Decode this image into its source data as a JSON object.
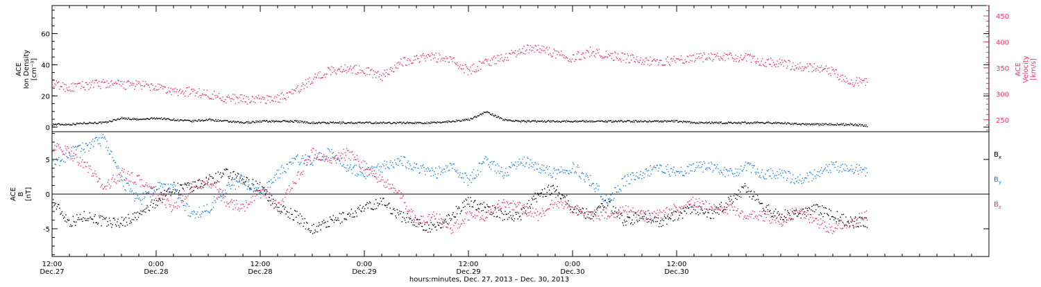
{
  "chart_data": [
    {
      "type": "scatter",
      "panel": "top",
      "left_axis": {
        "label_lines": [
          "ACE",
          "Ion Density",
          "[cm⁻³]"
        ],
        "ylim": [
          -3,
          78
        ],
        "ticks": [
          0,
          20,
          40,
          60
        ],
        "tick_labels": [
          "0",
          "20",
          "40",
          "60"
        ]
      },
      "right_axis": {
        "label_lines": [
          "ACE",
          "Velocity",
          "[km/s]"
        ],
        "ylim": [
          227,
          470
        ],
        "ticks": [
          250,
          300,
          350,
          400,
          450
        ],
        "tick_labels": [
          "250",
          "300",
          "350",
          "400",
          "450"
        ],
        "color": "#e8336a"
      },
      "series": [
        {
          "key": "density",
          "color": "#000000",
          "axis": "left",
          "x_hours": [
            0,
            2,
            4,
            6,
            8,
            10,
            12,
            14,
            16,
            18,
            20,
            22,
            24,
            26,
            28,
            30,
            32,
            34,
            36,
            38,
            40,
            42,
            44,
            46,
            48,
            50,
            52,
            54,
            56,
            58,
            60,
            62,
            64,
            66,
            68,
            70,
            72,
            74,
            76,
            78,
            80,
            82,
            84,
            86,
            88,
            90,
            92,
            94
          ],
          "values": [
            2,
            2,
            3,
            3,
            6,
            5,
            6,
            5,
            4,
            5,
            4,
            3,
            4,
            4,
            4,
            3,
            3,
            3,
            3,
            3,
            3,
            3,
            3,
            4,
            5,
            10,
            5,
            4,
            4,
            4,
            4,
            4,
            4,
            4,
            4,
            4,
            4,
            3,
            3,
            3,
            3,
            3,
            3,
            2,
            2,
            2,
            2,
            1
          ]
        },
        {
          "key": "velocity",
          "color": "#e8336a",
          "axis": "right",
          "x_hours": [
            0,
            2,
            4,
            6,
            8,
            10,
            12,
            14,
            16,
            18,
            20,
            22,
            24,
            26,
            28,
            30,
            32,
            34,
            36,
            38,
            40,
            42,
            44,
            46,
            48,
            50,
            52,
            54,
            56,
            58,
            60,
            62,
            64,
            66,
            68,
            70,
            72,
            74,
            76,
            78,
            80,
            82,
            84,
            86,
            88,
            90,
            92,
            94
          ],
          "values": [
            320,
            312,
            318,
            320,
            318,
            318,
            312,
            305,
            305,
            300,
            292,
            290,
            290,
            292,
            305,
            330,
            345,
            350,
            345,
            335,
            360,
            370,
            372,
            365,
            345,
            362,
            370,
            385,
            390,
            378,
            370,
            382,
            375,
            370,
            365,
            362,
            365,
            370,
            372,
            372,
            370,
            362,
            360,
            352,
            352,
            342,
            325,
            322
          ]
        }
      ]
    },
    {
      "type": "scatter",
      "panel": "bottom",
      "left_axis": {
        "label_lines": [
          "ACE",
          "B",
          "[nT]"
        ],
        "ylim": [
          -9,
          9
        ],
        "ticks": [
          -5,
          0,
          5
        ],
        "tick_labels": [
          "-5",
          "0",
          "5"
        ]
      },
      "legend": [
        {
          "label": "B",
          "sub": "x",
          "color": "#000000"
        },
        {
          "label": "B",
          "sub": "y",
          "color": "#1a80e0"
        },
        {
          "label": "B",
          "sub": "z",
          "color": "#e8336a"
        }
      ],
      "series": [
        {
          "key": "bx",
          "color": "#000000",
          "x_hours": [
            0,
            2,
            4,
            6,
            8,
            10,
            12,
            14,
            16,
            18,
            20,
            22,
            24,
            26,
            28,
            30,
            32,
            34,
            36,
            38,
            40,
            42,
            44,
            46,
            48,
            50,
            52,
            54,
            56,
            58,
            60,
            62,
            64,
            66,
            68,
            70,
            72,
            74,
            76,
            78,
            80,
            82,
            84,
            86,
            88,
            90,
            92,
            94
          ],
          "values": [
            -1,
            -4,
            -3,
            -4,
            -4,
            -3,
            -1,
            1,
            1,
            2,
            3,
            2,
            1,
            -2,
            -3,
            -5,
            -4,
            -3,
            -2,
            -1,
            -3,
            -4,
            -5,
            -3,
            -1,
            -2,
            -3,
            -3,
            0,
            1,
            -2,
            -3,
            -1,
            -4,
            -3,
            -4,
            -3,
            -2,
            -3,
            -1,
            1,
            -2,
            -3,
            -3,
            -2,
            -3,
            -4,
            -4
          ]
        },
        {
          "key": "by",
          "color": "#1a80e0",
          "x_hours": [
            0,
            2,
            4,
            6,
            8,
            10,
            12,
            14,
            16,
            18,
            20,
            22,
            24,
            26,
            28,
            30,
            32,
            34,
            36,
            38,
            40,
            42,
            44,
            46,
            48,
            50,
            52,
            54,
            56,
            58,
            60,
            62,
            64,
            66,
            68,
            70,
            72,
            74,
            76,
            78,
            80,
            82,
            84,
            86,
            88,
            90,
            92,
            94
          ],
          "values": [
            4,
            6,
            7,
            8,
            2,
            -1,
            1,
            1,
            -3,
            -2,
            1,
            2,
            0,
            3,
            5,
            5,
            6,
            4,
            3,
            4,
            5,
            4,
            3,
            4,
            2,
            5,
            3,
            5,
            4,
            3,
            4,
            2,
            -1,
            2,
            3,
            4,
            3,
            4,
            4,
            3,
            4,
            3,
            3,
            2,
            3,
            4,
            4,
            3
          ]
        },
        {
          "key": "bz",
          "color": "#e8336a",
          "x_hours": [
            0,
            2,
            4,
            6,
            8,
            10,
            12,
            14,
            16,
            18,
            20,
            22,
            24,
            26,
            28,
            30,
            32,
            34,
            36,
            38,
            40,
            42,
            44,
            46,
            48,
            50,
            52,
            54,
            56,
            58,
            60,
            62,
            64,
            66,
            68,
            70,
            72,
            74,
            76,
            78,
            80,
            82,
            84,
            86,
            88,
            90,
            92,
            94
          ],
          "values": [
            7,
            6,
            4,
            1,
            3,
            2,
            0,
            -2,
            1,
            2,
            -1,
            -2,
            1,
            -2,
            2,
            6,
            5,
            6,
            4,
            2,
            0,
            -4,
            -3,
            -5,
            -3,
            -3,
            -1,
            -2,
            -3,
            -1,
            -2,
            -3,
            -3,
            -2,
            -3,
            -3,
            -2,
            -1,
            -2,
            -2,
            -3,
            -3,
            -4,
            -2,
            -4,
            -5,
            -4,
            -3
          ]
        }
      ]
    }
  ],
  "x_axis": {
    "range_hours": [
      0,
      108
    ],
    "major_ticks": [
      {
        "hour": 0,
        "time": "12:00",
        "date": "Dec.27"
      },
      {
        "hour": 12,
        "time": "0:00",
        "date": "Dec.28"
      },
      {
        "hour": 24,
        "time": "12:00",
        "date": "Dec.28"
      },
      {
        "hour": 36,
        "time": "0:00",
        "date": "Dec.29"
      },
      {
        "hour": 48,
        "time": "12:00",
        "date": "Dec.29"
      },
      {
        "hour": 60,
        "time": "0:00",
        "date": "Dec.30"
      },
      {
        "hour": 72,
        "time": "12:00",
        "date": "Dec.30"
      }
    ],
    "minor_every_hours": 2,
    "xlabel": "hours:minutes, Dec. 27, 2013 – Dec. 30, 2013"
  }
}
